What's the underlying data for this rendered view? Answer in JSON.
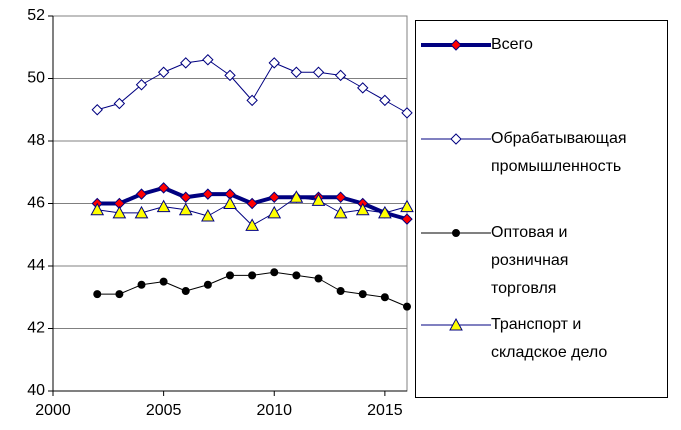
{
  "chart_data": {
    "type": "line",
    "x": [
      2002,
      2003,
      2004,
      2005,
      2006,
      2007,
      2008,
      2009,
      2010,
      2011,
      2012,
      2013,
      2014,
      2015,
      2016
    ],
    "series": [
      {
        "name": "Всего",
        "color": "#000080",
        "marker": "diamond",
        "marker_color": "#ff0000",
        "line_width": 4,
        "values": [
          46.0,
          46.0,
          46.3,
          46.5,
          46.2,
          46.3,
          46.3,
          46.0,
          46.2,
          46.2,
          46.2,
          46.2,
          46.0,
          45.7,
          45.5
        ]
      },
      {
        "name": "Обрабатывающая промышленность",
        "color": "#000080",
        "marker": "diamond",
        "marker_color": "#ffffff",
        "line_width": 1,
        "values": [
          49.0,
          49.2,
          49.8,
          50.2,
          50.5,
          50.6,
          50.1,
          49.3,
          50.5,
          50.2,
          50.2,
          50.1,
          49.7,
          49.3,
          48.9
        ]
      },
      {
        "name": "Оптовая и розничная торговля",
        "color": "#000000",
        "marker": "circle",
        "marker_color": "#000000",
        "line_width": 1,
        "values": [
          43.1,
          43.1,
          43.4,
          43.5,
          43.2,
          43.4,
          43.7,
          43.7,
          43.8,
          43.7,
          43.6,
          43.2,
          43.1,
          43.0,
          42.7
        ]
      },
      {
        "name": "Транспорт и складское дело",
        "color": "#000080",
        "marker": "triangle",
        "marker_color": "#ffff00",
        "line_width": 1,
        "values": [
          45.8,
          45.7,
          45.7,
          45.9,
          45.8,
          45.6,
          46.0,
          45.3,
          45.7,
          46.2,
          46.1,
          45.7,
          45.8,
          45.7,
          45.9
        ]
      }
    ],
    "xlim": [
      2000,
      2016
    ],
    "xticks": [
      2000,
      2005,
      2010,
      2015
    ],
    "ylim": [
      40,
      52
    ],
    "yticks": [
      40,
      42,
      44,
      46,
      48,
      50,
      52
    ],
    "grid": true,
    "legend": "right"
  }
}
